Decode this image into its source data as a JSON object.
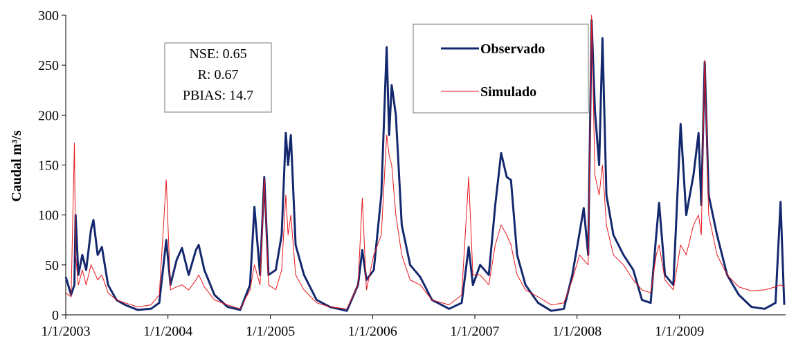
{
  "chart_data": {
    "type": "line",
    "y_label": "Caudal  m³/s",
    "annotations": [
      "NSE: 0.65",
      "R: 0.67",
      "PBIAS: 14.7"
    ],
    "legend": "upper center",
    "x": [
      "2003-01-01",
      "2003-01-20",
      "2003-02-01",
      "2003-02-05",
      "2003-02-15",
      "2003-03-01",
      "2003-03-15",
      "2003-04-01",
      "2003-04-10",
      "2003-04-25",
      "2003-05-10",
      "2003-06-01",
      "2003-07-01",
      "2003-08-01",
      "2003-09-15",
      "2003-11-01",
      "2003-12-01",
      "2003-12-26",
      "2004-01-10",
      "2004-02-01",
      "2004-02-20",
      "2004-03-15",
      "2004-04-10",
      "2004-04-20",
      "2004-05-10",
      "2004-06-15",
      "2004-08-01",
      "2004-09-15",
      "2004-10-20",
      "2004-11-05",
      "2004-11-25",
      "2004-12-10",
      "2004-12-25",
      "2005-01-20",
      "2005-02-10",
      "2005-02-25",
      "2005-03-05",
      "2005-03-15",
      "2005-04-01",
      "2005-05-01",
      "2005-06-15",
      "2005-08-01",
      "2005-10-01",
      "2005-11-10",
      "2005-11-25",
      "2005-12-10",
      "2006-01-05",
      "2006-02-01",
      "2006-02-20",
      "2006-03-01",
      "2006-03-10",
      "2006-03-25",
      "2006-04-15",
      "2006-05-15",
      "2006-06-20",
      "2006-08-01",
      "2006-10-01",
      "2006-11-15",
      "2006-12-10",
      "2006-12-25",
      "2007-01-20",
      "2007-02-20",
      "2007-03-15",
      "2007-04-05",
      "2007-04-25",
      "2007-05-10",
      "2007-06-01",
      "2007-07-01",
      "2007-08-15",
      "2007-10-01",
      "2007-11-15",
      "2007-12-15",
      "2008-01-10",
      "2008-01-25",
      "2008-02-10",
      "2008-02-22",
      "2008-03-05",
      "2008-03-20",
      "2008-04-01",
      "2008-04-15",
      "2008-05-10",
      "2008-06-15",
      "2008-07-20",
      "2008-08-20",
      "2008-09-20",
      "2008-10-10",
      "2008-10-20",
      "2008-11-10",
      "2008-12-10",
      "2009-01-05",
      "2009-01-25",
      "2009-02-20",
      "2009-03-10",
      "2009-03-20",
      "2009-04-01",
      "2009-04-15",
      "2009-05-15",
      "2009-06-20",
      "2009-08-01",
      "2009-09-15",
      "2009-11-01",
      "2009-12-10",
      "2009-12-28",
      "2010-01-10"
    ],
    "series": [
      {
        "name": "Observado",
        "color": "#14286e",
        "width": 3,
        "values": [
          38,
          20,
          30,
          100,
          40,
          60,
          45,
          85,
          95,
          60,
          68,
          30,
          15,
          10,
          5,
          6,
          12,
          75,
          30,
          55,
          67,
          40,
          65,
          70,
          45,
          20,
          8,
          5,
          30,
          108,
          40,
          138,
          40,
          45,
          80,
          182,
          150,
          180,
          70,
          40,
          15,
          8,
          4,
          30,
          65,
          35,
          45,
          120,
          268,
          180,
          230,
          200,
          90,
          50,
          38,
          15,
          6,
          12,
          68,
          30,
          50,
          40,
          110,
          162,
          138,
          135,
          60,
          30,
          12,
          4,
          6,
          40,
          82,
          107,
          60,
          295,
          205,
          150,
          277,
          120,
          80,
          60,
          45,
          15,
          12,
          80,
          112,
          40,
          30,
          191,
          100,
          140,
          182,
          110,
          253,
          120,
          80,
          40,
          20,
          8,
          6,
          12,
          113,
          10
        ]
      },
      {
        "name": "Simulado",
        "color": "#e8161b",
        "width": 1,
        "values": [
          22,
          18,
          172,
          60,
          30,
          45,
          30,
          50,
          45,
          35,
          40,
          22,
          15,
          12,
          8,
          10,
          20,
          135,
          25,
          28,
          30,
          25,
          35,
          40,
          28,
          15,
          10,
          6,
          25,
          50,
          30,
          137,
          30,
          25,
          45,
          120,
          80,
          100,
          40,
          25,
          12,
          8,
          6,
          30,
          117,
          25,
          60,
          80,
          180,
          160,
          150,
          100,
          60,
          35,
          30,
          15,
          10,
          20,
          138,
          40,
          40,
          30,
          70,
          90,
          80,
          70,
          40,
          25,
          18,
          10,
          12,
          35,
          60,
          55,
          50,
          300,
          140,
          120,
          150,
          90,
          60,
          50,
          35,
          25,
          22,
          60,
          70,
          35,
          25,
          70,
          60,
          90,
          100,
          80,
          255,
          100,
          60,
          40,
          28,
          24,
          25,
          28,
          30,
          28
        ]
      }
    ],
    "xlim": [
      "2003-01-01",
      "2010-01-15"
    ],
    "xticks": [
      {
        "value": "2003-01-01",
        "label": "1/1/2003"
      },
      {
        "value": "2004-01-01",
        "label": "1/1/2004"
      },
      {
        "value": "2005-01-01",
        "label": "1/1/2005"
      },
      {
        "value": "2006-01-01",
        "label": "1/1/2006"
      },
      {
        "value": "2007-01-01",
        "label": "1/1/2007"
      },
      {
        "value": "2008-01-01",
        "label": "1/1/2008"
      },
      {
        "value": "2009-01-01",
        "label": "1/1/2009"
      }
    ],
    "ylim": [
      0,
      300
    ],
    "yticks": [
      0,
      50,
      100,
      150,
      200,
      250,
      300
    ]
  }
}
